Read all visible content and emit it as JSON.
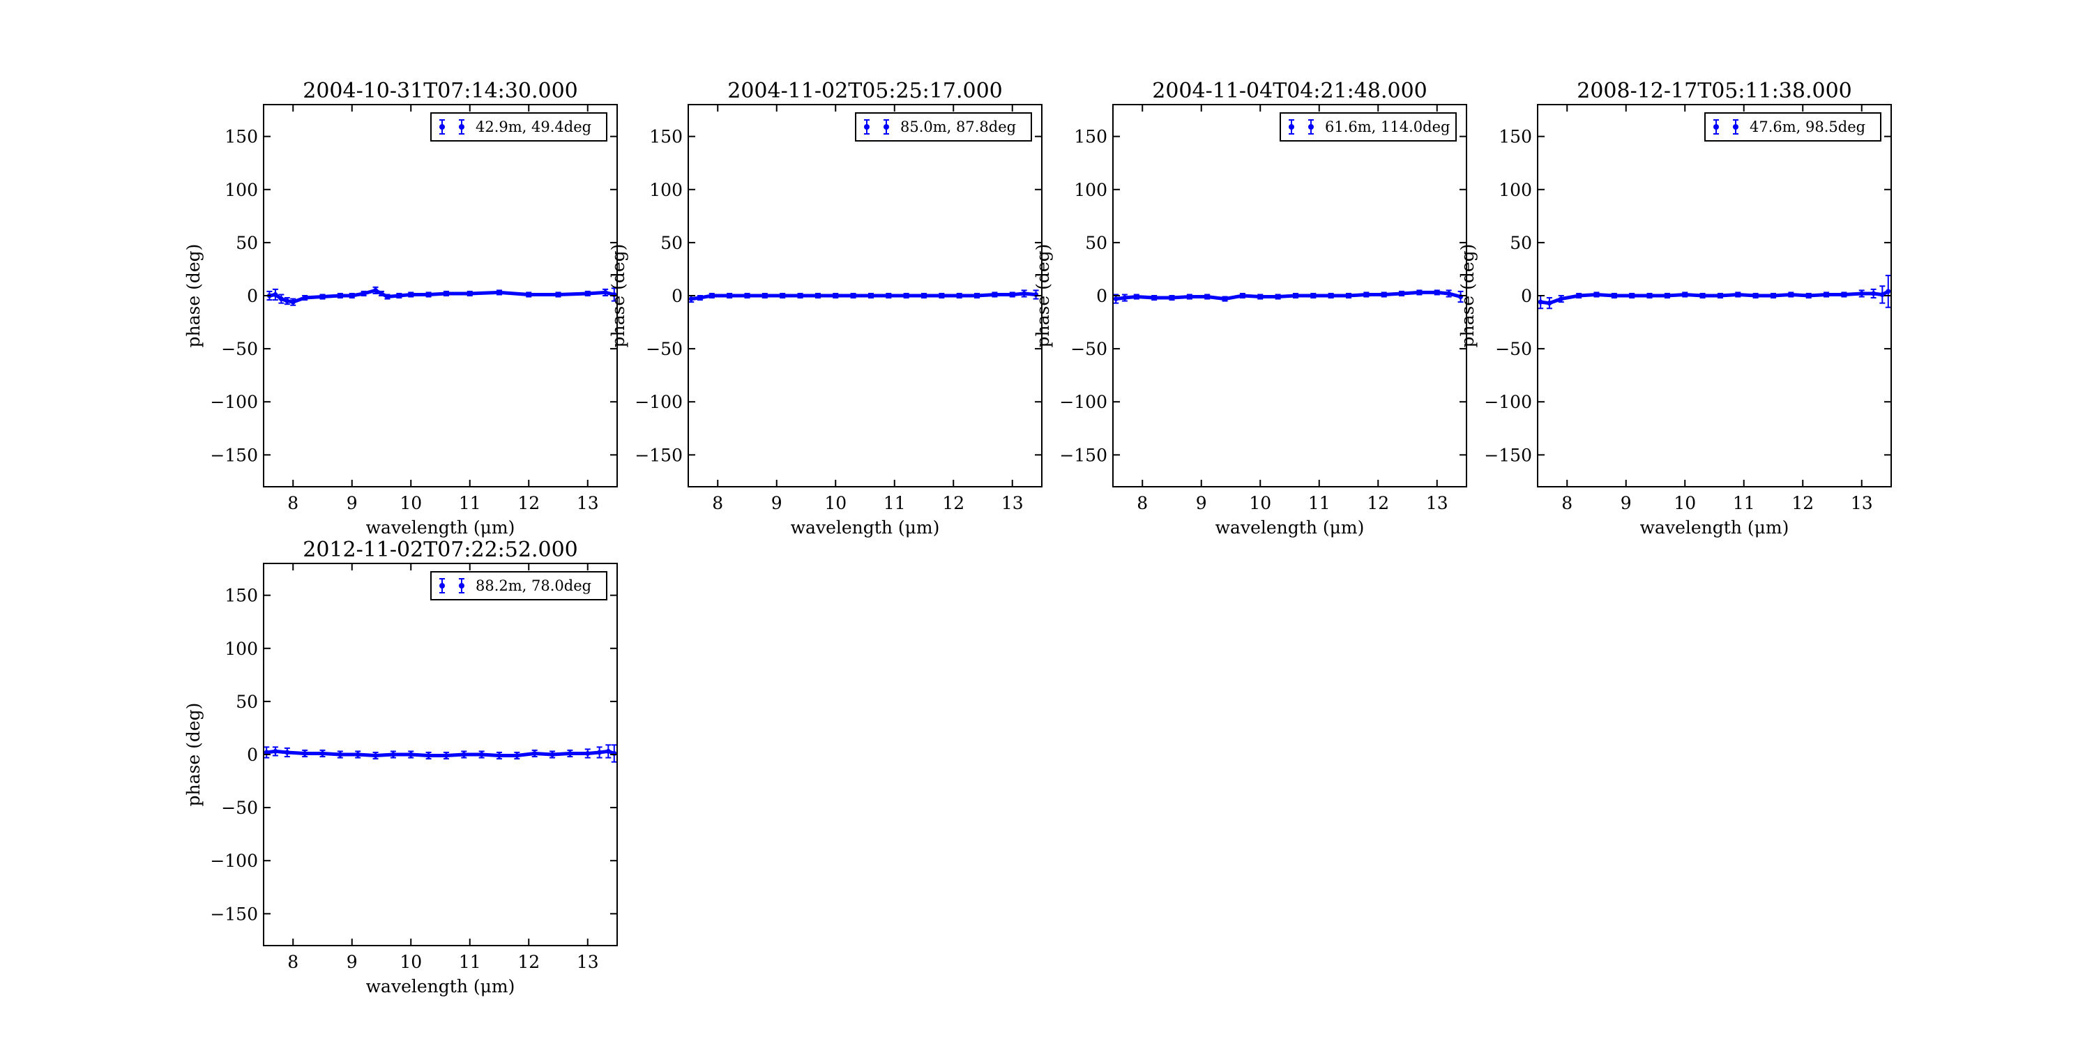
{
  "figure": {
    "background": "#ffffff"
  },
  "chart_data": [
    {
      "type": "scatter",
      "title": "2004-10-31T07:14:30.000",
      "xlabel": "wavelength (μm)",
      "ylabel": "phase (deg)",
      "xlim": [
        7.5,
        13.5
      ],
      "ylim": [
        -180,
        180
      ],
      "xticks": [
        8,
        9,
        10,
        11,
        12,
        13
      ],
      "yticks": [
        150,
        100,
        50,
        0,
        -50,
        -100,
        -150
      ],
      "ytick_labels": [
        "150",
        "100",
        "50",
        "0",
        "−50",
        "−100",
        "−150"
      ],
      "legend_position": "upper right",
      "series": [
        {
          "name": "42.9m, 49.4deg",
          "color": "#0000ff",
          "marker": "point-with-errorbar",
          "x": [
            7.6,
            7.7,
            7.8,
            7.9,
            8.0,
            8.2,
            8.5,
            8.8,
            9.0,
            9.2,
            9.4,
            9.5,
            9.6,
            9.8,
            10.0,
            10.3,
            10.6,
            11.0,
            11.5,
            12.0,
            12.5,
            13.0,
            13.3,
            13.45
          ],
          "y": [
            0,
            1,
            -3,
            -5,
            -6,
            -2,
            -1,
            0,
            0,
            2,
            5,
            2,
            -1,
            0,
            1,
            1,
            2,
            2,
            3,
            1,
            1,
            2,
            3,
            1
          ],
          "yerr": [
            4,
            5,
            4,
            3,
            3,
            2,
            2,
            2,
            2,
            2,
            3,
            2,
            2,
            2,
            2,
            2,
            2,
            2,
            2,
            2,
            2,
            2,
            3,
            6
          ]
        }
      ]
    },
    {
      "type": "scatter",
      "title": "2004-11-02T05:25:17.000",
      "xlabel": "wavelength (μm)",
      "ylabel": "phase (deg)",
      "xlim": [
        7.5,
        13.5
      ],
      "ylim": [
        -180,
        180
      ],
      "xticks": [
        8,
        9,
        10,
        11,
        12,
        13
      ],
      "yticks": [
        150,
        100,
        50,
        0,
        -50,
        -100,
        -150
      ],
      "ytick_labels": [
        "150",
        "100",
        "50",
        "0",
        "−50",
        "−100",
        "−150"
      ],
      "legend_position": "upper right",
      "series": [
        {
          "name": "85.0m, 87.8deg",
          "color": "#0000ff",
          "marker": "point-with-errorbar",
          "x": [
            7.55,
            7.7,
            7.9,
            8.2,
            8.5,
            8.8,
            9.1,
            9.4,
            9.7,
            10.0,
            10.3,
            10.6,
            10.9,
            11.2,
            11.5,
            11.8,
            12.1,
            12.4,
            12.7,
            13.0,
            13.2,
            13.4
          ],
          "y": [
            -3,
            -2,
            0,
            0,
            0,
            0,
            0,
            0,
            0,
            0,
            0,
            0,
            0,
            0,
            0,
            0,
            0,
            0,
            1,
            1,
            2,
            1
          ],
          "yerr": [
            3,
            2,
            2,
            2,
            2,
            2,
            2,
            2,
            2,
            2,
            2,
            2,
            2,
            2,
            2,
            2,
            2,
            2,
            2,
            2,
            3,
            4
          ]
        }
      ]
    },
    {
      "type": "scatter",
      "title": "2004-11-04T04:21:48.000",
      "xlabel": "wavelength (μm)",
      "ylabel": "phase (deg)",
      "xlim": [
        7.5,
        13.5
      ],
      "ylim": [
        -180,
        180
      ],
      "xticks": [
        8,
        9,
        10,
        11,
        12,
        13
      ],
      "yticks": [
        150,
        100,
        50,
        0,
        -50,
        -100,
        -150
      ],
      "ytick_labels": [
        "150",
        "100",
        "50",
        "0",
        "−50",
        "−100",
        "−150"
      ],
      "legend_position": "upper right",
      "series": [
        {
          "name": "61.6m, 114.0deg",
          "color": "#0000ff",
          "marker": "point-with-errorbar",
          "x": [
            7.55,
            7.7,
            7.9,
            8.2,
            8.5,
            8.8,
            9.1,
            9.4,
            9.7,
            10.0,
            10.3,
            10.6,
            10.9,
            11.2,
            11.5,
            11.8,
            12.1,
            12.4,
            12.7,
            13.0,
            13.2,
            13.4
          ],
          "y": [
            -3,
            -2,
            -1,
            -2,
            -2,
            -1,
            -1,
            -3,
            0,
            -1,
            -1,
            0,
            0,
            0,
            0,
            1,
            1,
            2,
            3,
            3,
            2,
            -1
          ],
          "yerr": [
            4,
            3,
            2,
            2,
            2,
            2,
            2,
            2,
            2,
            2,
            2,
            2,
            2,
            2,
            2,
            2,
            2,
            2,
            2,
            2,
            3,
            5
          ]
        }
      ]
    },
    {
      "type": "scatter",
      "title": "2008-12-17T05:11:38.000",
      "xlabel": "wavelength (μm)",
      "ylabel": "phase (deg)",
      "xlim": [
        7.5,
        13.5
      ],
      "ylim": [
        -180,
        180
      ],
      "xticks": [
        8,
        9,
        10,
        11,
        12,
        13
      ],
      "yticks": [
        150,
        100,
        50,
        0,
        -50,
        -100,
        -150
      ],
      "ytick_labels": [
        "150",
        "100",
        "50",
        "0",
        "−50",
        "−100",
        "−150"
      ],
      "legend_position": "upper right",
      "series": [
        {
          "name": "47.6m, 98.5deg",
          "color": "#0000ff",
          "marker": "point-with-errorbar",
          "x": [
            7.55,
            7.7,
            7.9,
            8.2,
            8.5,
            8.8,
            9.1,
            9.4,
            9.7,
            10.0,
            10.3,
            10.6,
            10.9,
            11.2,
            11.5,
            11.8,
            12.1,
            12.4,
            12.7,
            13.0,
            13.2,
            13.35,
            13.45
          ],
          "y": [
            -6,
            -7,
            -3,
            0,
            1,
            0,
            0,
            0,
            0,
            1,
            0,
            0,
            1,
            0,
            0,
            1,
            0,
            1,
            1,
            2,
            2,
            1,
            4
          ],
          "yerr": [
            6,
            5,
            3,
            2,
            2,
            2,
            2,
            2,
            2,
            2,
            2,
            2,
            2,
            2,
            2,
            2,
            2,
            2,
            2,
            3,
            4,
            8,
            15
          ]
        }
      ]
    },
    {
      "type": "scatter",
      "title": "2012-11-02T07:22:52.000",
      "xlabel": "wavelength (μm)",
      "ylabel": "phase (deg)",
      "xlim": [
        7.5,
        13.5
      ],
      "ylim": [
        -180,
        180
      ],
      "xticks": [
        8,
        9,
        10,
        11,
        12,
        13
      ],
      "yticks": [
        150,
        100,
        50,
        0,
        -50,
        -100,
        -150
      ],
      "ytick_labels": [
        "150",
        "100",
        "50",
        "0",
        "−50",
        "−100",
        "−150"
      ],
      "legend_position": "upper right",
      "series": [
        {
          "name": "88.2m, 78.0deg",
          "color": "#0000ff",
          "marker": "point-with-errorbar",
          "x": [
            7.55,
            7.7,
            7.9,
            8.2,
            8.5,
            8.8,
            9.1,
            9.4,
            9.7,
            10.0,
            10.3,
            10.6,
            10.9,
            11.2,
            11.5,
            11.8,
            12.1,
            12.4,
            12.7,
            13.0,
            13.2,
            13.35,
            13.45
          ],
          "y": [
            2,
            3,
            2,
            1,
            1,
            0,
            0,
            -1,
            0,
            0,
            -1,
            -1,
            0,
            0,
            -1,
            -1,
            1,
            0,
            1,
            1,
            2,
            3,
            1
          ],
          "yerr": [
            5,
            4,
            4,
            3,
            3,
            3,
            3,
            3,
            3,
            3,
            3,
            3,
            3,
            3,
            3,
            3,
            3,
            3,
            3,
            4,
            5,
            6,
            8
          ]
        }
      ]
    }
  ]
}
